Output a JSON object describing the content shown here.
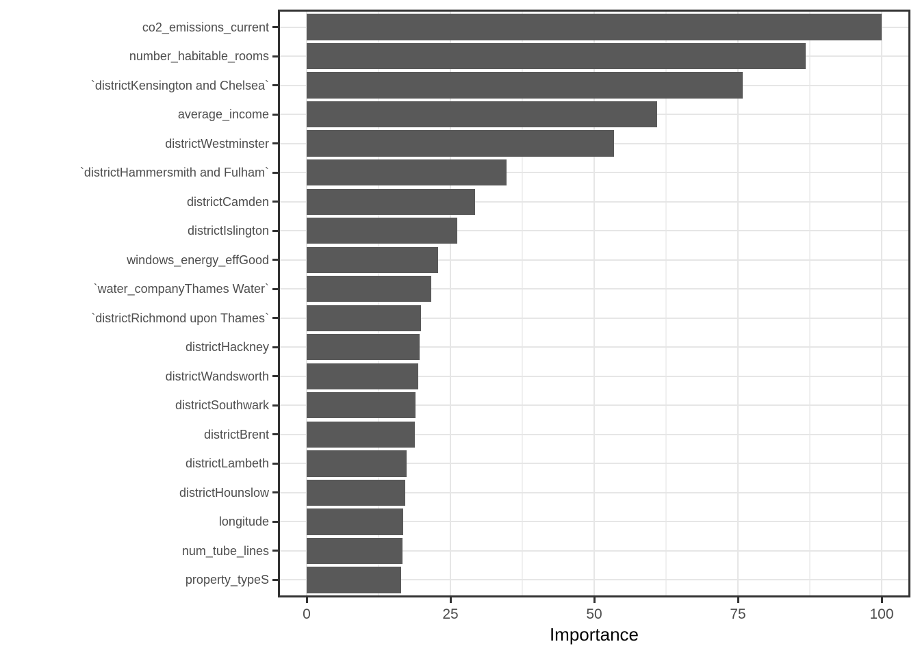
{
  "chart_data": {
    "type": "bar",
    "orientation": "horizontal",
    "title": "",
    "xlabel": "Importance",
    "ylabel": "",
    "xlim": [
      0,
      100
    ],
    "xticks": [
      "0",
      "25",
      "50",
      "75",
      "100"
    ],
    "xtick_values": [
      0,
      25,
      50,
      75,
      100
    ],
    "grid": "major and minor vertical gridlines, major horizontal gridlines at category centers",
    "legend": "none",
    "categories": [
      "co2_emissions_current",
      "number_habitable_rooms",
      "`districtKensington and Chelsea`",
      "average_income",
      "districtWestminster",
      "`districtHammersmith and Fulham`",
      "districtCamden",
      "districtIslington",
      "windows_energy_effGood",
      "`water_companyThames Water`",
      "`districtRichmond upon Thames`",
      "districtHackney",
      "districtWandsworth",
      "districtSouthwark",
      "districtBrent",
      "districtLambeth",
      "districtHounslow",
      "longitude",
      "num_tube_lines",
      "property_typeS"
    ],
    "values": [
      100,
      86.8,
      75.8,
      61.0,
      53.4,
      34.8,
      29.3,
      26.2,
      22.9,
      21.7,
      19.9,
      19.6,
      19.4,
      18.9,
      18.8,
      17.4,
      17.1,
      16.8,
      16.7,
      16.4
    ],
    "colors": {
      "bar": "#595959",
      "grid_major": "#e6e6e6",
      "grid_minor": "#f0f0f0",
      "panel_border": "#333333",
      "tick": "#333333",
      "axis_text": "#4d4d4d",
      "axis_title": "#000000",
      "background": "#ffffff"
    }
  }
}
